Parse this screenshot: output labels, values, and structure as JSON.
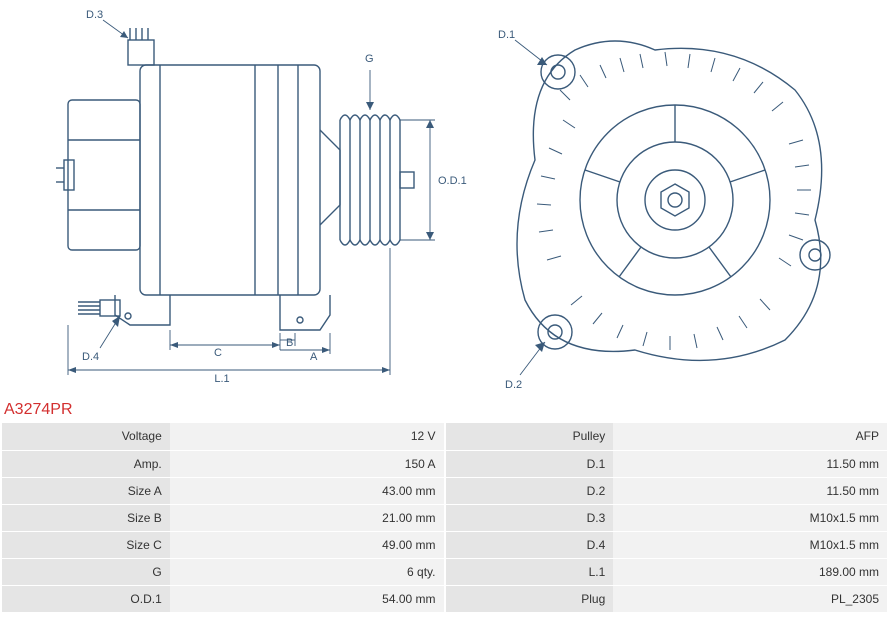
{
  "part_number": "A3274PR",
  "diagram": {
    "stroke_color": "#3a5a7a",
    "stroke_width": 1.4,
    "label_color": "#3a5a7a",
    "label_fontsize": 11,
    "background": "#ffffff",
    "labels": {
      "D3": "D.3",
      "G": "G",
      "OD1": "O.D.1",
      "D4": "D.4",
      "C": "C",
      "B": "B",
      "A": "A",
      "L1": "L.1",
      "D1": "D.1",
      "D2": "D.2"
    }
  },
  "specs_left": [
    {
      "label": "Voltage",
      "value": "12 V"
    },
    {
      "label": "Amp.",
      "value": "150 A"
    },
    {
      "label": "Size A",
      "value": "43.00 mm"
    },
    {
      "label": "Size B",
      "value": "21.00 mm"
    },
    {
      "label": "Size C",
      "value": "49.00 mm"
    },
    {
      "label": "G",
      "value": "6 qty."
    },
    {
      "label": "O.D.1",
      "value": "54.00 mm"
    }
  ],
  "specs_right": [
    {
      "label": "Pulley",
      "value": "AFP"
    },
    {
      "label": "D.1",
      "value": "11.50 mm"
    },
    {
      "label": "D.2",
      "value": "11.50 mm"
    },
    {
      "label": "D.3",
      "value": "M10x1.5 mm"
    },
    {
      "label": "D.4",
      "value": "M10x1.5 mm"
    },
    {
      "label": "L.1",
      "value": "189.00 mm"
    },
    {
      "label": "Plug",
      "value": "PL_2305"
    }
  ]
}
